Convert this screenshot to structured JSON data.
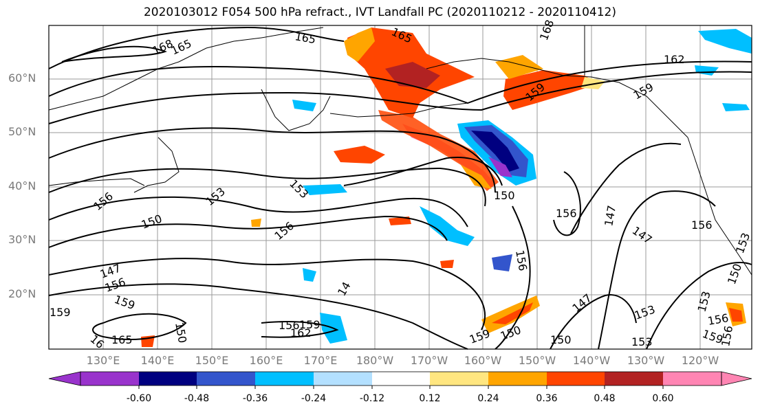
{
  "title": "2020103012 F054 500 hPa refract., IVT Landfall PC (2020110212 - 2020110412)",
  "map": {
    "lat_labels": [
      "60°N",
      "50°N",
      "40°N",
      "30°N",
      "20°N"
    ],
    "lon_labels": [
      "130°E",
      "140°E",
      "150°E",
      "160°E",
      "170°E",
      "180°W",
      "170°W",
      "160°W",
      "150°W",
      "140°W",
      "130°W",
      "120°W"
    ],
    "contour_labels": [
      "165",
      "168",
      "165",
      "165",
      "168",
      "162",
      "159",
      "159",
      "156",
      "153",
      "153",
      "150",
      "156",
      "150",
      "147",
      "156",
      "159",
      "150",
      "156",
      "162",
      "159",
      "165",
      "16",
      "156",
      "159",
      "150",
      "156",
      "150",
      "147",
      "153",
      "156",
      "153",
      "147",
      "156",
      "159",
      "14",
      "153",
      "150",
      "147",
      "153",
      "156",
      "159"
    ]
  },
  "colorbar": {
    "colors": [
      "#9933cc",
      "#000080",
      "#3355cc",
      "#00bfff",
      "#b3e0ff",
      "#ffffff",
      "#ffe680",
      "#ffa500",
      "#ff4500",
      "#b22222",
      "#ff85b3"
    ],
    "tick_labels": [
      "-0.60",
      "-0.48",
      "-0.36",
      "-0.24",
      "-0.12",
      "0.12",
      "0.24",
      "0.36",
      "0.48",
      "0.60"
    ]
  },
  "shading_colors": {
    "orange_light": "#ffe680",
    "orange": "#ffa500",
    "red_orange": "#ff4500",
    "dark_red": "#b22222",
    "pink": "#ff85b3",
    "light_blue": "#b3e0ff",
    "sky_blue": "#00bfff",
    "mid_blue": "#3355cc",
    "navy": "#000080",
    "purple": "#9933cc"
  }
}
